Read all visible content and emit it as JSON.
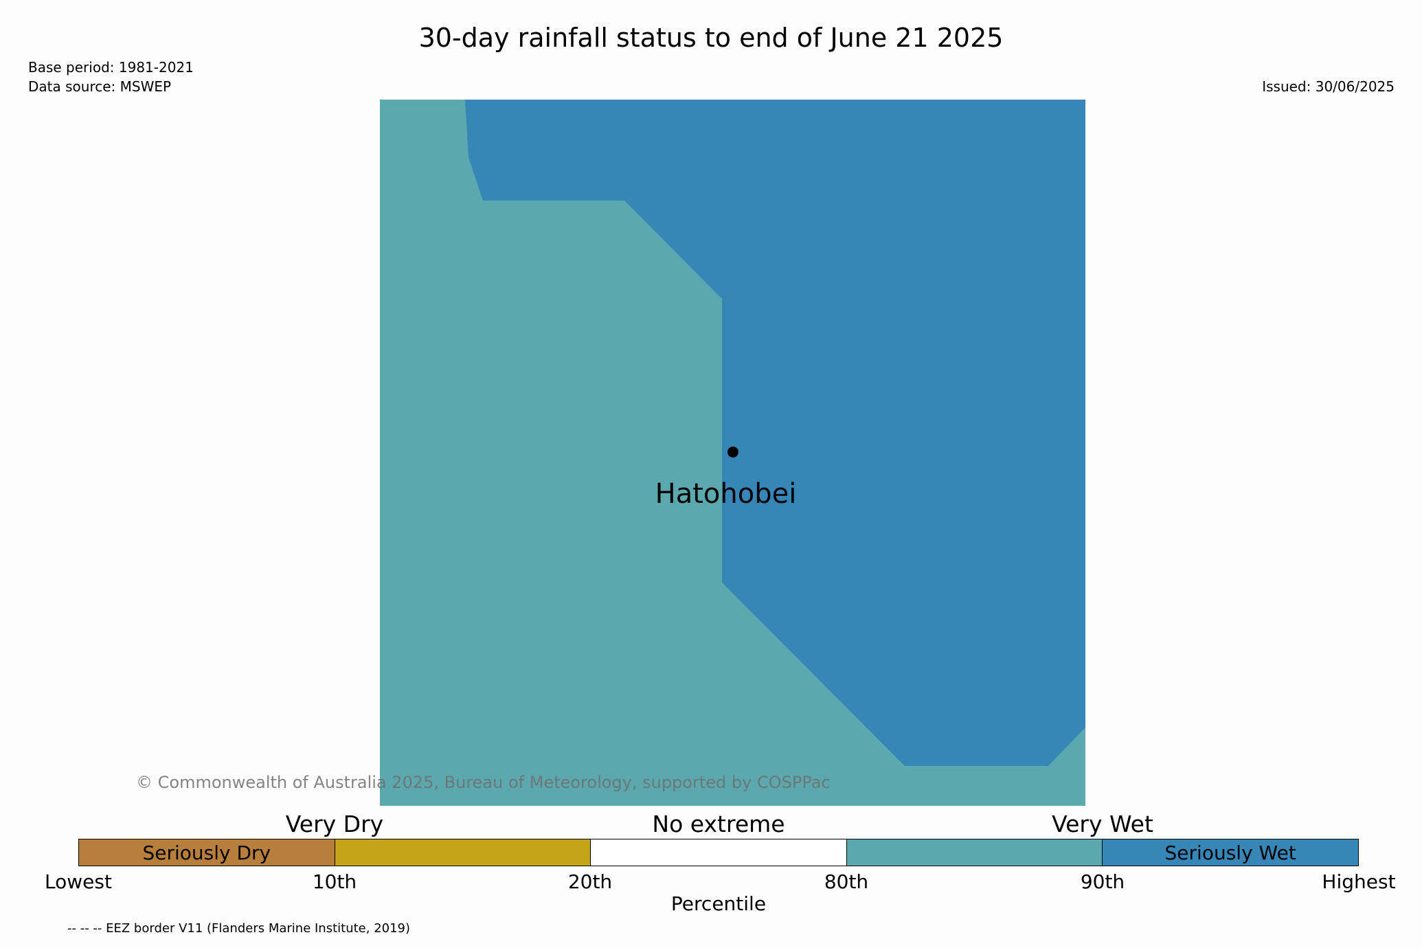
{
  "title": "30-day rainfall status to end of June 21 2025",
  "meta": {
    "base_period": "Base period: 1981-2021",
    "data_source": "Data source: MSWEP",
    "issued": "Issued: 30/06/2025"
  },
  "map": {
    "place_label": "Hatohobei",
    "copyright": "© Commonwealth of Australia 2025, Bureau of Meteorology, supported by COSPPac",
    "colors": {
      "very_wet": "#5ca8af",
      "seriously_wet": "#3786b8",
      "point": "#000000"
    }
  },
  "legend": {
    "categories": {
      "very_dry": "Very Dry",
      "no_extreme": "No extreme",
      "very_wet": "Very Wet"
    },
    "segments": [
      {
        "label": "Seriously Dry",
        "color": "#b77f3b"
      },
      {
        "label": "",
        "color": "#c4a41b"
      },
      {
        "label": "",
        "color": "#ffffff"
      },
      {
        "label": "",
        "color": "#5ca8af"
      },
      {
        "label": "Seriously Wet",
        "color": "#3786b8"
      }
    ],
    "ticks": [
      "Lowest",
      "10th",
      "20th",
      "80th",
      "90th",
      "Highest"
    ],
    "axis_label": "Percentile"
  },
  "footnote": "-- -- -- EEZ border V11 (Flanders Marine Institute, 2019)"
}
